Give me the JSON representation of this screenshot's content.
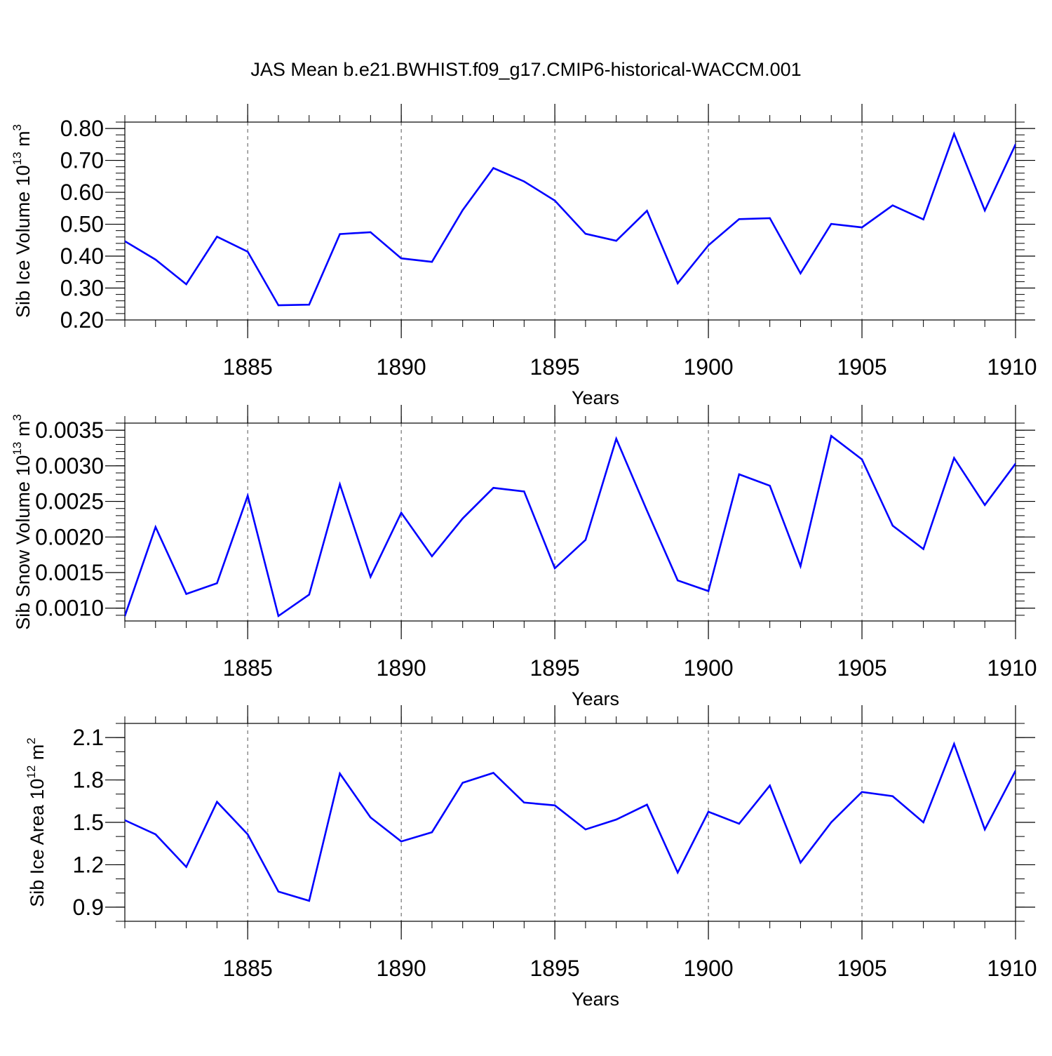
{
  "figure": {
    "title": "JAS Mean b.e21.BWHIST.f09_g17.CMIP6-historical-WACCM.001"
  },
  "chart_data": [
    {
      "type": "line",
      "id": "ice-volume",
      "title": "",
      "xlabel": "Years",
      "ylabel": "Sib Ice Volume 10",
      "ylabel_exponent": "13",
      "ylabel_unit": "m",
      "ylabel_unit_exponent": "3",
      "xlim": [
        1881,
        1910
      ],
      "ylim": [
        0.2,
        0.82
      ],
      "yticks": [
        0.2,
        0.3,
        0.4,
        0.5,
        0.6,
        0.7,
        0.8
      ],
      "ytick_labels": [
        "0.20",
        "0.30",
        "0.40",
        "0.50",
        "0.60",
        "0.70",
        "0.80"
      ],
      "yminor_step": 0.02,
      "xticks": [
        1885,
        1890,
        1895,
        1900,
        1905,
        1910
      ],
      "xtick_labels": [
        "1885",
        "1890",
        "1895",
        "1900",
        "1905",
        "1910"
      ],
      "grid": "vertical dashed at major x ticks",
      "color": "#0000ff",
      "x": [
        1881,
        1882,
        1883,
        1884,
        1885,
        1886,
        1887,
        1888,
        1889,
        1890,
        1891,
        1892,
        1893,
        1894,
        1895,
        1896,
        1897,
        1898,
        1899,
        1900,
        1901,
        1902,
        1903,
        1904,
        1905,
        1906,
        1907,
        1908,
        1909,
        1910
      ],
      "values": [
        0.447,
        0.389,
        0.312,
        0.461,
        0.414,
        0.246,
        0.248,
        0.469,
        0.475,
        0.393,
        0.382,
        0.544,
        0.676,
        0.634,
        0.574,
        0.47,
        0.448,
        0.542,
        0.315,
        0.434,
        0.516,
        0.519,
        0.346,
        0.501,
        0.49,
        0.559,
        0.515,
        0.783,
        0.543,
        0.75
      ]
    },
    {
      "type": "line",
      "id": "snow-volume",
      "title": "",
      "xlabel": "Years",
      "ylabel": "Sib Snow Volume 10",
      "ylabel_exponent": "13",
      "ylabel_unit": "m",
      "ylabel_unit_exponent": "3",
      "xlim": [
        1881,
        1910
      ],
      "ylim": [
        0.00082,
        0.0036
      ],
      "yticks": [
        0.001,
        0.0015,
        0.002,
        0.0025,
        0.003,
        0.0035
      ],
      "ytick_labels": [
        "0.0010",
        "0.0015",
        "0.0020",
        "0.0025",
        "0.0030",
        "0.0035"
      ],
      "yminor_step": 0.0001,
      "xticks": [
        1885,
        1890,
        1895,
        1900,
        1905,
        1910
      ],
      "xtick_labels": [
        "1885",
        "1890",
        "1895",
        "1900",
        "1905",
        "1910"
      ],
      "grid": "vertical dashed at major x ticks",
      "color": "#0000ff",
      "x": [
        1881,
        1882,
        1883,
        1884,
        1885,
        1886,
        1887,
        1888,
        1889,
        1890,
        1891,
        1892,
        1893,
        1894,
        1895,
        1896,
        1897,
        1898,
        1899,
        1900,
        1901,
        1902,
        1903,
        1904,
        1905,
        1906,
        1907,
        1908,
        1909,
        1910
      ],
      "values": [
        0.00089,
        0.00214,
        0.0012,
        0.00135,
        0.00258,
        0.00089,
        0.00119,
        0.00274,
        0.00144,
        0.00234,
        0.00173,
        0.00226,
        0.00269,
        0.00264,
        0.00156,
        0.00196,
        0.00338,
        0.00237,
        0.00139,
        0.00124,
        0.00288,
        0.00272,
        0.00159,
        0.00342,
        0.00309,
        0.00216,
        0.00183,
        0.00311,
        0.00245,
        0.00303
      ]
    },
    {
      "type": "line",
      "id": "ice-area",
      "title": "",
      "xlabel": "Years",
      "ylabel": "Sib Ice Area 10",
      "ylabel_exponent": "12",
      "ylabel_unit": "m",
      "ylabel_unit_exponent": "2",
      "xlim": [
        1881,
        1910
      ],
      "ylim": [
        0.8,
        2.2
      ],
      "yticks": [
        0.9,
        1.2,
        1.5,
        1.8,
        2.1
      ],
      "ytick_labels": [
        "0.9",
        "1.2",
        "1.5",
        "1.8",
        "2.1"
      ],
      "yminor_step": 0.1,
      "xticks": [
        1885,
        1890,
        1895,
        1900,
        1905,
        1910
      ],
      "xtick_labels": [
        "1885",
        "1890",
        "1895",
        "1900",
        "1905",
        "1910"
      ],
      "grid": "vertical dashed at major x ticks",
      "color": "#0000ff",
      "x": [
        1881,
        1882,
        1883,
        1884,
        1885,
        1886,
        1887,
        1888,
        1889,
        1890,
        1891,
        1892,
        1893,
        1894,
        1895,
        1896,
        1897,
        1898,
        1899,
        1900,
        1901,
        1902,
        1903,
        1904,
        1905,
        1906,
        1907,
        1908,
        1909,
        1910
      ],
      "values": [
        1.515,
        1.415,
        1.185,
        1.645,
        1.415,
        1.01,
        0.945,
        1.845,
        1.535,
        1.365,
        1.43,
        1.78,
        1.85,
        1.64,
        1.62,
        1.45,
        1.52,
        1.625,
        1.145,
        1.575,
        1.49,
        1.76,
        1.215,
        1.5,
        1.715,
        1.685,
        1.5,
        2.055,
        1.45,
        1.865
      ]
    }
  ]
}
